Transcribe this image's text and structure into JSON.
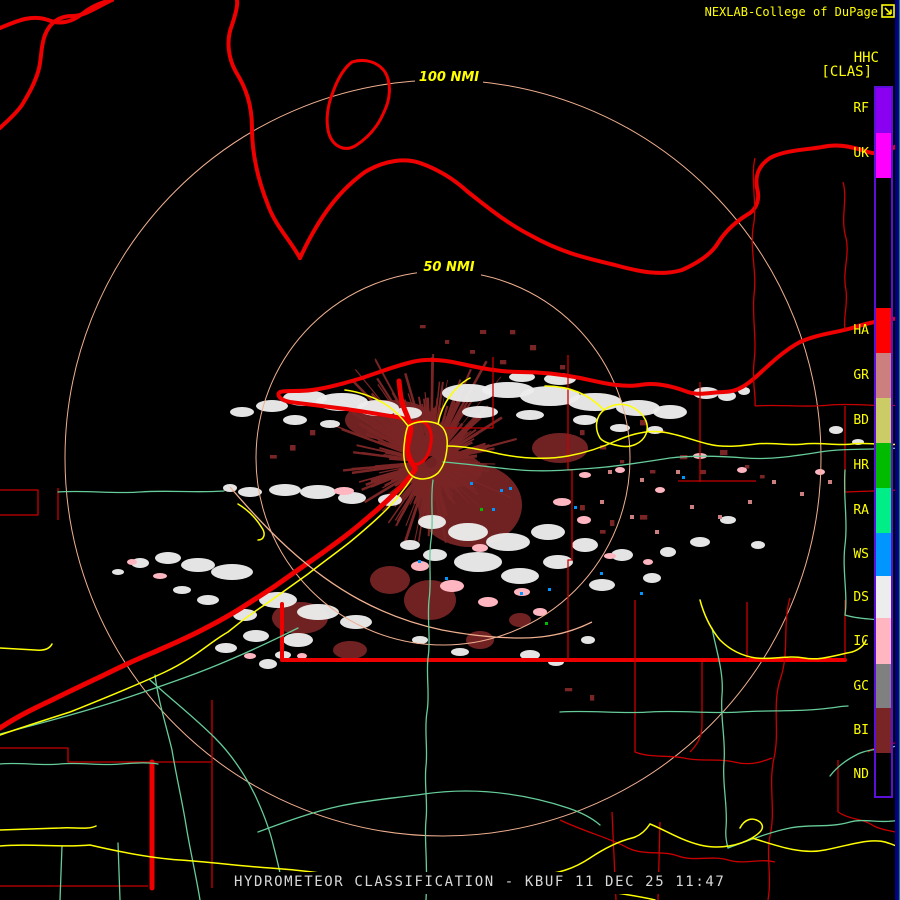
{
  "header": {
    "brand": "NEXLAB-College of DuPage",
    "brand_icon": "external-link-icon",
    "product_code": "HHC",
    "product_tag": "[CLAS]"
  },
  "rings": {
    "outer_label": "100 NMI",
    "inner_label": "50 NMI"
  },
  "legend": {
    "labels": [
      "RF",
      "UK",
      "HA",
      "GR",
      "BD",
      "HR",
      "RA",
      "WS",
      "DS",
      "IC",
      "GC",
      "BI",
      "ND"
    ],
    "blocks": [
      {
        "name": "RF",
        "color": "#8a00f0"
      },
      {
        "name": "UK",
        "color": "#ff00ff"
      },
      {
        "name": "gap",
        "color": "#000000"
      },
      {
        "name": "HA",
        "color": "#ff0000"
      },
      {
        "name": "GR",
        "color": "#cc7f7f"
      },
      {
        "name": "BD",
        "color": "#cccc66"
      },
      {
        "name": "HR",
        "color": "#00bb00"
      },
      {
        "name": "RA",
        "color": "#00ee88"
      },
      {
        "name": "WS",
        "color": "#0095ff"
      },
      {
        "name": "DS",
        "color": "#ededed"
      },
      {
        "name": "IC",
        "color": "#ffb6c1"
      },
      {
        "name": "GC",
        "color": "#808080"
      },
      {
        "name": "BI",
        "color": "#7a2525"
      },
      {
        "name": "ND",
        "color": "#000000"
      }
    ],
    "border_color": "#5a10d8"
  },
  "status_bar": {
    "text": "HYDROMETEOR CLASSIFICATION - KBUF 11 DEC 25 11:47"
  },
  "map_colors": {
    "shoreline": "#ee0000",
    "county": "#c80000",
    "highway": "#ffff00",
    "road": "#66cc99",
    "ring": "#f0b090",
    "secondary_road": "#f0b090",
    "label_yellow": "#ffff00",
    "edge_strip": "#000080"
  }
}
